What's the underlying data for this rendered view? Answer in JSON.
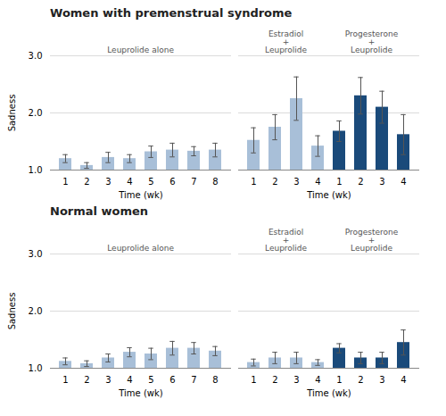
{
  "chart_data": [
    {
      "type": "bar",
      "title": "Women with premenstrual syndrome",
      "xlabel": "Time (wk)",
      "ylabel": "Sadness",
      "categories": [
        "1",
        "2",
        "3",
        "4",
        "5",
        "6",
        "7",
        "8"
      ],
      "values": [
        1.2,
        1.08,
        1.22,
        1.2,
        1.32,
        1.35,
        1.33,
        1.35
      ],
      "errors": [
        0.07,
        0.05,
        0.09,
        0.07,
        0.1,
        0.12,
        0.08,
        0.12
      ],
      "color": "#a8bfd8",
      "ylim": [
        1,
        3
      ],
      "yticks": [
        1,
        2,
        3
      ],
      "grid": true,
      "annotations": [
        {
          "text": "Leuprolide alone"
        }
      ]
    },
    {
      "type": "bar",
      "xlabel": "Time (wk)",
      "categories": [
        "1",
        "2",
        "3",
        "4",
        "1",
        "2",
        "3",
        "4"
      ],
      "values": [
        1.52,
        1.75,
        2.25,
        1.42,
        1.68,
        2.3,
        2.1,
        1.62
      ],
      "errors": [
        0.22,
        0.22,
        0.38,
        0.18,
        0.18,
        0.32,
        0.28,
        0.35
      ],
      "colors": [
        "#a8bfd8",
        "#a8bfd8",
        "#a8bfd8",
        "#a8bfd8",
        "#1a4a7a",
        "#1a4a7a",
        "#1a4a7a",
        "#1a4a7a"
      ],
      "ylim": [
        1,
        3
      ],
      "yticks": [
        1,
        2,
        3
      ],
      "grid": true,
      "tick_labels": "x",
      "annotations": [
        {
          "text": "Estradiol\n+\nLeuprolide"
        },
        {
          "text": "Progesterone\n+\nLeuprolide"
        }
      ]
    },
    {
      "type": "bar",
      "title": "Normal women",
      "xlabel": "Time (wk)",
      "ylabel": "Sadness",
      "categories": [
        "1",
        "2",
        "3",
        "4",
        "5",
        "6",
        "7",
        "8"
      ],
      "values": [
        1.12,
        1.08,
        1.18,
        1.28,
        1.25,
        1.35,
        1.35,
        1.3
      ],
      "errors": [
        0.06,
        0.05,
        0.07,
        0.08,
        0.1,
        0.12,
        0.1,
        0.08
      ],
      "color": "#a8bfd8",
      "ylim": [
        1,
        3
      ],
      "yticks": [
        1,
        2,
        3
      ],
      "grid": true,
      "annotations": [
        {
          "text": "Leuprolide alone"
        }
      ]
    },
    {
      "type": "bar",
      "xlabel": "Time (wk)",
      "categories": [
        "1",
        "2",
        "3",
        "4",
        "1",
        "2",
        "3",
        "4"
      ],
      "values": [
        1.1,
        1.18,
        1.18,
        1.1,
        1.35,
        1.18,
        1.18,
        1.45
      ],
      "errors": [
        0.06,
        0.1,
        0.1,
        0.05,
        0.08,
        0.1,
        0.1,
        0.22
      ],
      "colors": [
        "#a8bfd8",
        "#a8bfd8",
        "#a8bfd8",
        "#a8bfd8",
        "#1a4a7a",
        "#1a4a7a",
        "#1a4a7a",
        "#1a4a7a"
      ],
      "ylim": [
        1,
        3
      ],
      "yticks": [
        1,
        2,
        3
      ],
      "grid": true,
      "tick_labels": "x",
      "annotations": [
        {
          "text": "Estradiol\n+\nLeuprolide"
        },
        {
          "text": "Progesterone\n+\nLeuprolide"
        }
      ]
    }
  ]
}
